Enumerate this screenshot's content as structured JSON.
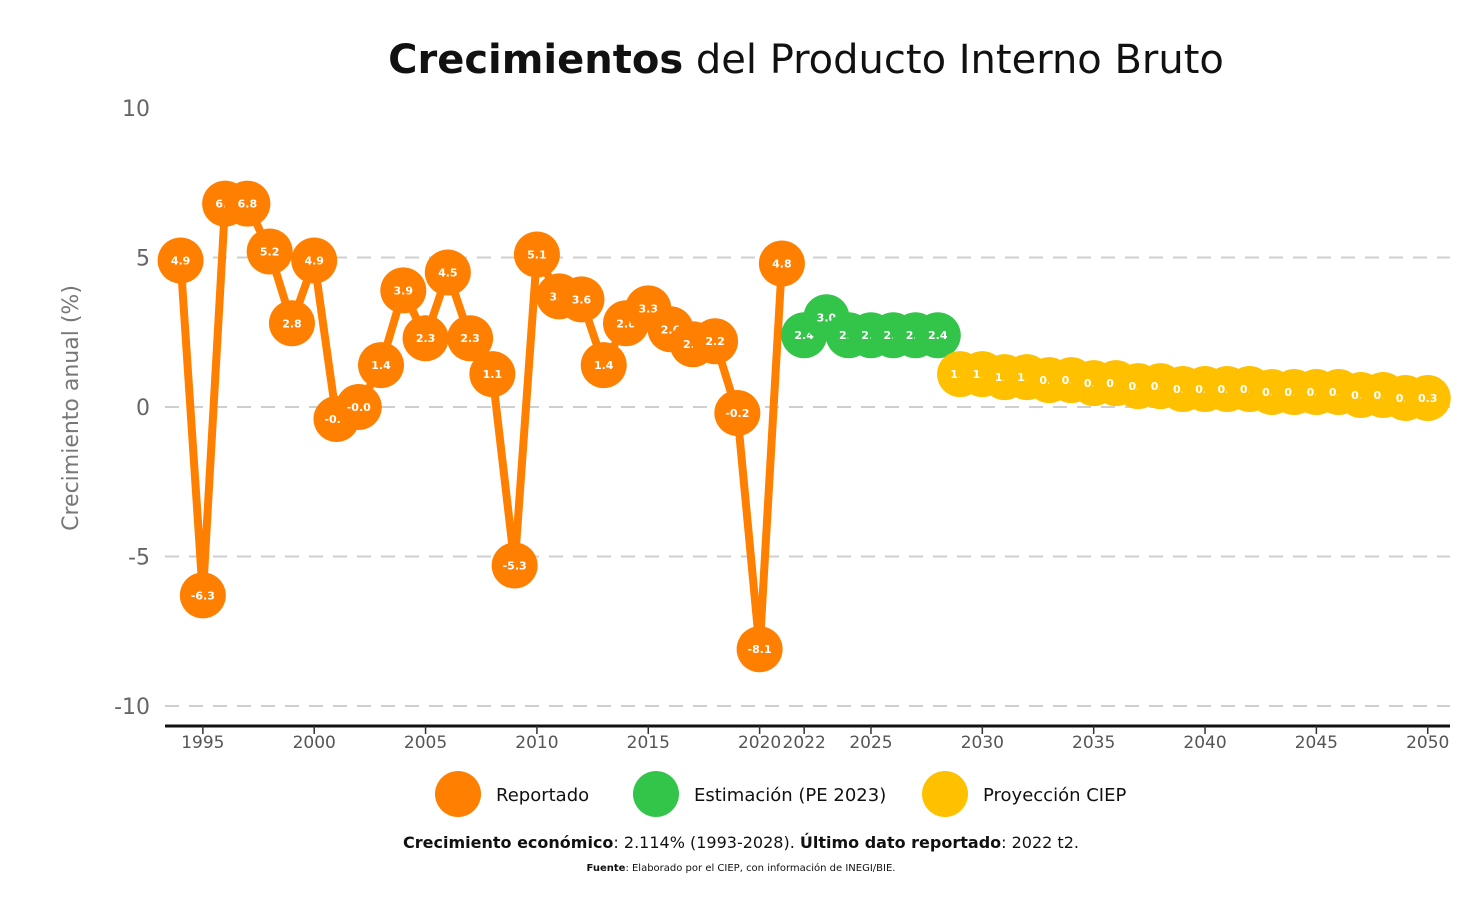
{
  "title_bold": "Crecimientos",
  "title_rest": " del Producto Interno Bruto",
  "ylabel": "Crecimiento anual (%)",
  "footnote": {
    "label1": "Crecimiento económico",
    "text1": ": 2.114% (1993-2028). ",
    "label2": "Último dato reportado",
    "text2": ": 2022 t2."
  },
  "source": {
    "label": "Fuente",
    "text": ": Elaborado por el CIEP, con información de INEGI/BIE."
  },
  "chart_data": {
    "type": "line",
    "ylim": [
      -10,
      10
    ],
    "xlim": [
      1993.3,
      2051
    ],
    "yticks": [
      -10,
      -5,
      0,
      5,
      10
    ],
    "xticks": [
      1995,
      2000,
      2005,
      2010,
      2015,
      2020,
      2022,
      2025,
      2030,
      2035,
      2040,
      2045,
      2050
    ],
    "grid": true,
    "legend_position": "bottom",
    "series": [
      {
        "name": "Reportado",
        "color": "#ff7f00",
        "x": [
          1994,
          1995,
          1996,
          1997,
          1998,
          1999,
          2000,
          2001,
          2002,
          2003,
          2004,
          2005,
          2006,
          2007,
          2008,
          2009,
          2010,
          2011,
          2012,
          2013,
          2014,
          2015,
          2016,
          2017,
          2018,
          2019,
          2020,
          2021
        ],
        "values": [
          4.9,
          -6.3,
          6.8,
          6.8,
          5.2,
          2.8,
          4.9,
          -0.4,
          -0.0,
          1.4,
          3.9,
          2.3,
          4.5,
          2.3,
          1.1,
          -5.3,
          5.1,
          3.7,
          3.6,
          1.4,
          2.8,
          3.3,
          2.6,
          2.1,
          2.2,
          -0.2,
          -8.1,
          4.8
        ],
        "labels": [
          "4.9",
          "-6.3",
          "6.8",
          "6.8",
          "5.2",
          "2.8",
          "4.9",
          "-0.4",
          "-0.0",
          "1.4",
          "3.9",
          "2.3",
          "4.5",
          "2.3",
          "1.1",
          "-5.3",
          "5.1",
          "3.7",
          "3.6",
          "1.4",
          "2.8",
          "3.3",
          "2.6",
          "2.1",
          "2.2",
          "-0.2",
          "-8.1",
          "4.8"
        ]
      },
      {
        "name": "Estimación (PE 2023)",
        "color": "#33c44a",
        "x": [
          2022,
          2023,
          2024,
          2025,
          2026,
          2027,
          2028
        ],
        "values": [
          2.4,
          3.0,
          2.4,
          2.4,
          2.4,
          2.4,
          2.4
        ],
        "labels": [
          "2.4",
          "3.0",
          "2.4",
          "2.4",
          "2.4",
          "2.4",
          "2.4"
        ]
      },
      {
        "name": "Proyección CIEP",
        "color": "#ffc000",
        "x": [
          2029,
          2030,
          2031,
          2032,
          2033,
          2034,
          2035,
          2036,
          2037,
          2038,
          2039,
          2040,
          2041,
          2042,
          2043,
          2044,
          2045,
          2046,
          2047,
          2048,
          2049,
          2050
        ],
        "values": [
          1.1,
          1.1,
          1.0,
          1.0,
          0.9,
          0.9,
          0.8,
          0.8,
          0.7,
          0.7,
          0.6,
          0.6,
          0.6,
          0.6,
          0.5,
          0.5,
          0.5,
          0.5,
          0.4,
          0.4,
          0.3,
          0.3
        ],
        "labels": [
          "1.1",
          "1.1",
          "1.0",
          "1.0",
          "0.9",
          "0.9",
          "0.8",
          "0.8",
          "0.7",
          "0.7",
          "0.6",
          "0.6",
          "0.6",
          "0.6",
          "0.5",
          "0.5",
          "0.5",
          "0.5",
          "0.4",
          "0.4",
          "0.3",
          "0.3"
        ]
      }
    ]
  }
}
